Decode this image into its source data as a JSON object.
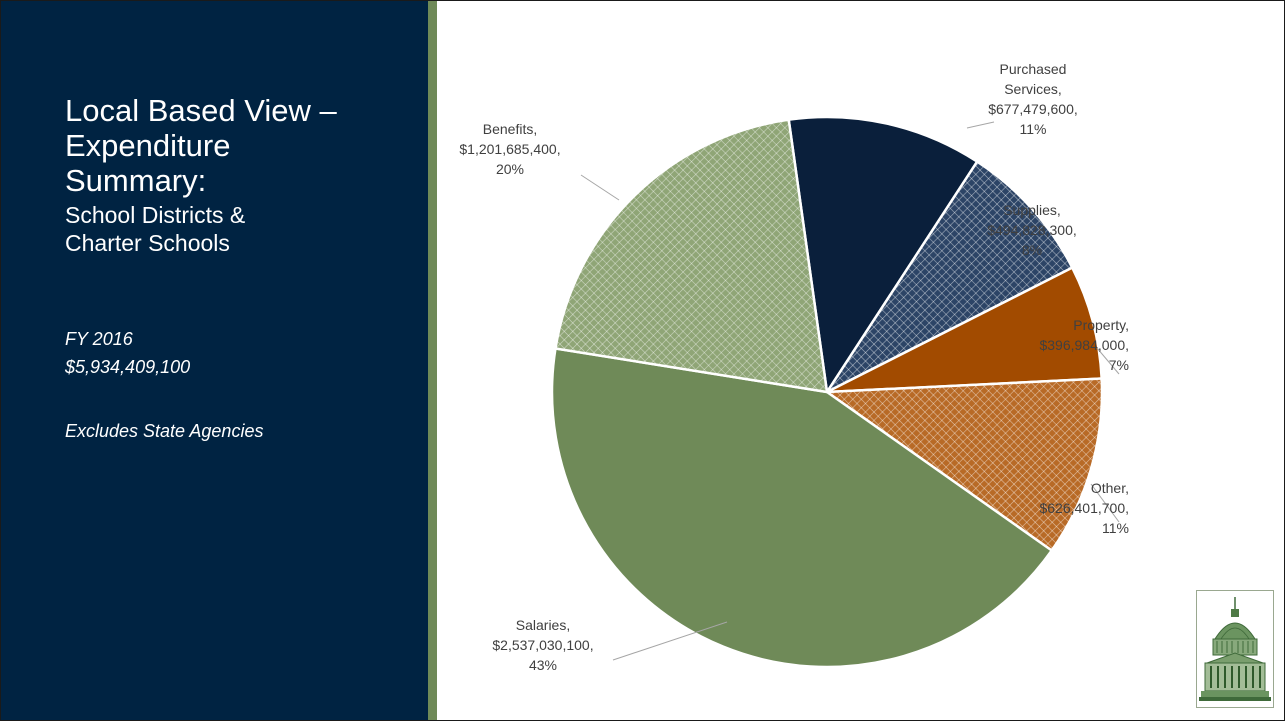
{
  "slide": {
    "title_line1": "Local Based View –",
    "title_line2": "Expenditure",
    "title_line3": "Summary:",
    "subtitle_line1": "School Districts &",
    "subtitle_line2": "Charter Schools",
    "fiscal_year": "FY 2016",
    "total": "$5,934,409,100",
    "note": "Excludes State Agencies"
  },
  "colors": {
    "panel_background": "#002342",
    "accent_stripe": "#6f8a58"
  },
  "chart_data": {
    "type": "pie",
    "title": "",
    "total": 5934409100,
    "series": [
      {
        "name": "",
        "slices": [
          {
            "category": "Purchased Services",
            "value": 677479600,
            "percent": 11,
            "label_lines": [
              "Purchased",
              "Services,",
              "$677,479,600,",
              "11%"
            ],
            "color": "#0a1f3b",
            "pattern": "none"
          },
          {
            "category": "Supplies",
            "value": 494828300,
            "percent": 8,
            "label_lines": [
              "Supplies,",
              "$494,828,300,",
              "8%"
            ],
            "color": "#2c4466",
            "pattern": "crosshatch"
          },
          {
            "category": "Property",
            "value": 396984000,
            "percent": 7,
            "label_lines": [
              "Property,",
              "$396,984,000,",
              "7%"
            ],
            "color": "#a24b00",
            "pattern": "none"
          },
          {
            "category": "Other",
            "value": 626401700,
            "percent": 11,
            "label_lines": [
              "Other,",
              "$626,401,700,",
              "11%"
            ],
            "color": "#b86a26",
            "pattern": "crosshatch"
          },
          {
            "category": "Salaries",
            "value": 2537030100,
            "percent": 43,
            "label_lines": [
              "Salaries,",
              "$2,537,030,100,",
              "43%"
            ],
            "color": "#6f8a58",
            "pattern": "none"
          },
          {
            "category": "Benefits",
            "value": 1201685400,
            "percent": 20,
            "label_lines": [
              "Benefits,",
              "$1,201,685,400,",
              "20%"
            ],
            "color": "#8fa576",
            "pattern": "crosshatch"
          }
        ]
      }
    ],
    "legend": "none",
    "data_labels": "outside with leader lines"
  }
}
